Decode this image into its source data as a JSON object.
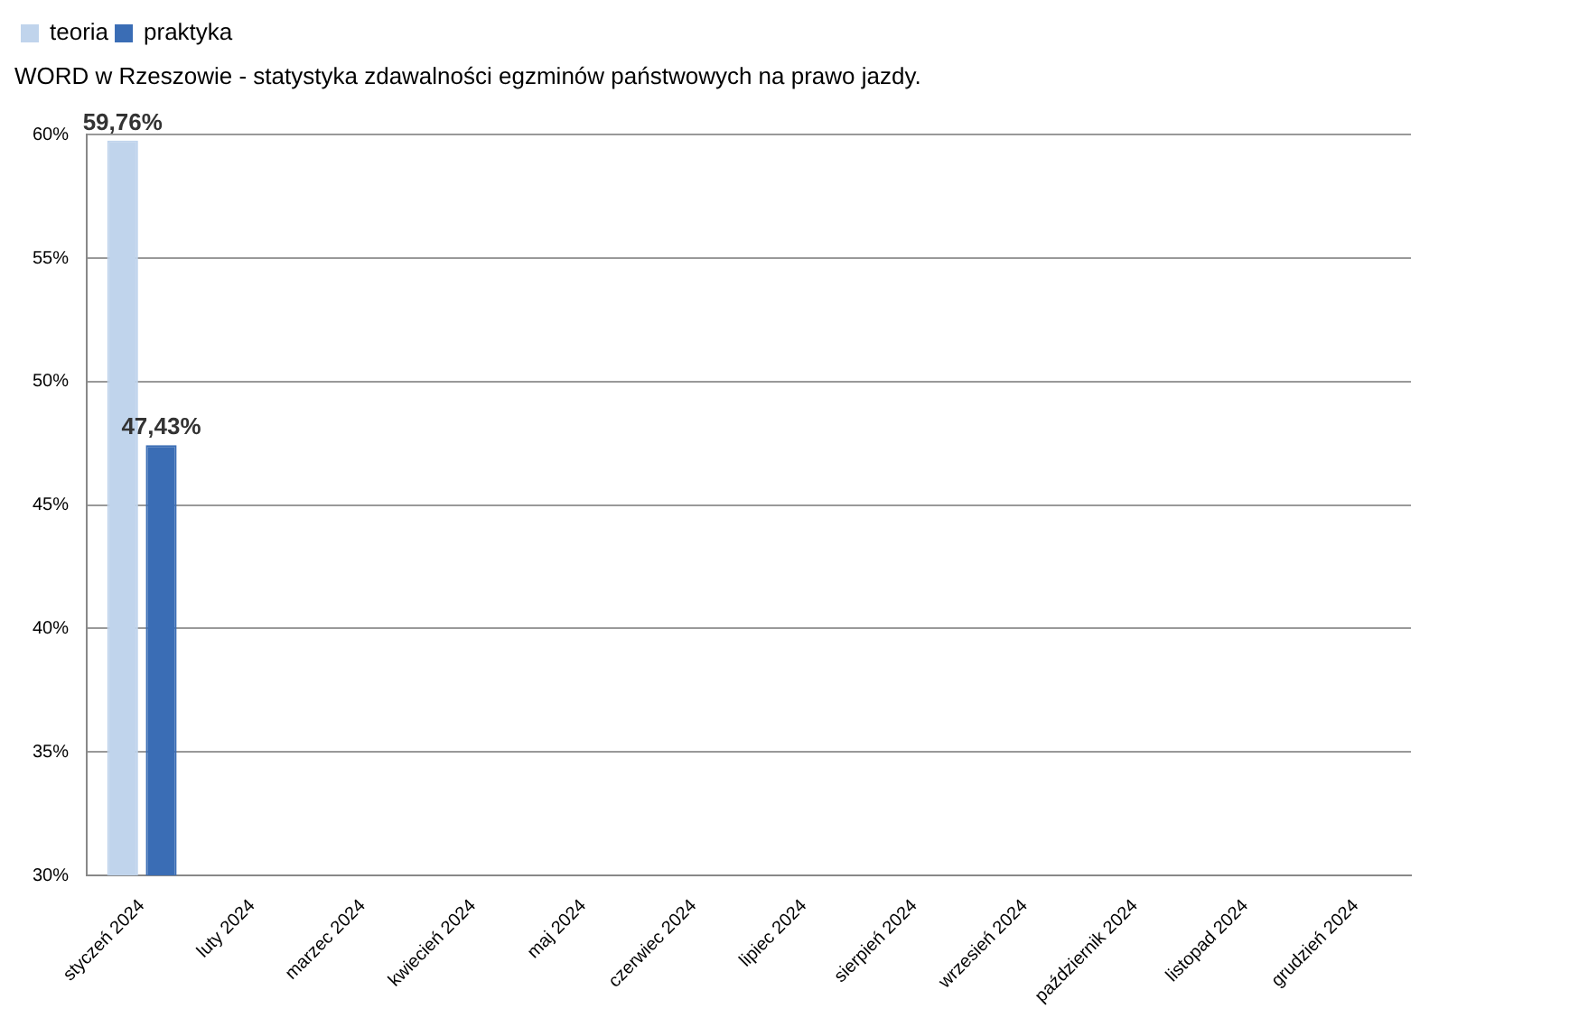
{
  "chart_data": {
    "type": "bar",
    "title": "WORD w Rzeszowie - statystyka zdawalności egzminów państwowych na prawo jazdy.",
    "categories": [
      "styczeń 2024",
      "luty 2024",
      "marzec 2024",
      "kwiecień 2024",
      "maj 2024",
      "czerwiec 2024",
      "lipiec 2024",
      "sierpień 2024",
      "wrzesień 2024",
      "październik 2024",
      "listopad 2024",
      "grudzień 2024"
    ],
    "series": [
      {
        "name": "teoria",
        "color": "#c0d4ec",
        "values": [
          59.76,
          null,
          null,
          null,
          null,
          null,
          null,
          null,
          null,
          null,
          null,
          null
        ],
        "value_labels": [
          "59,76%",
          null,
          null,
          null,
          null,
          null,
          null,
          null,
          null,
          null,
          null,
          null
        ]
      },
      {
        "name": "praktyka",
        "color": "#3a6db5",
        "values": [
          47.43,
          null,
          null,
          null,
          null,
          null,
          null,
          null,
          null,
          null,
          null,
          null
        ],
        "value_labels": [
          "47,43%",
          null,
          null,
          null,
          null,
          null,
          null,
          null,
          null,
          null,
          null,
          null
        ]
      }
    ],
    "ylim": [
      30,
      60
    ],
    "yticks": [
      {
        "value": 30,
        "label": "30%"
      },
      {
        "value": 35,
        "label": "35%"
      },
      {
        "value": 40,
        "label": "40%"
      },
      {
        "value": 45,
        "label": "45%"
      },
      {
        "value": 50,
        "label": "50%"
      },
      {
        "value": 55,
        "label": "55%"
      },
      {
        "value": 60,
        "label": "60%"
      }
    ],
    "grid": "y",
    "legend": "top left"
  }
}
